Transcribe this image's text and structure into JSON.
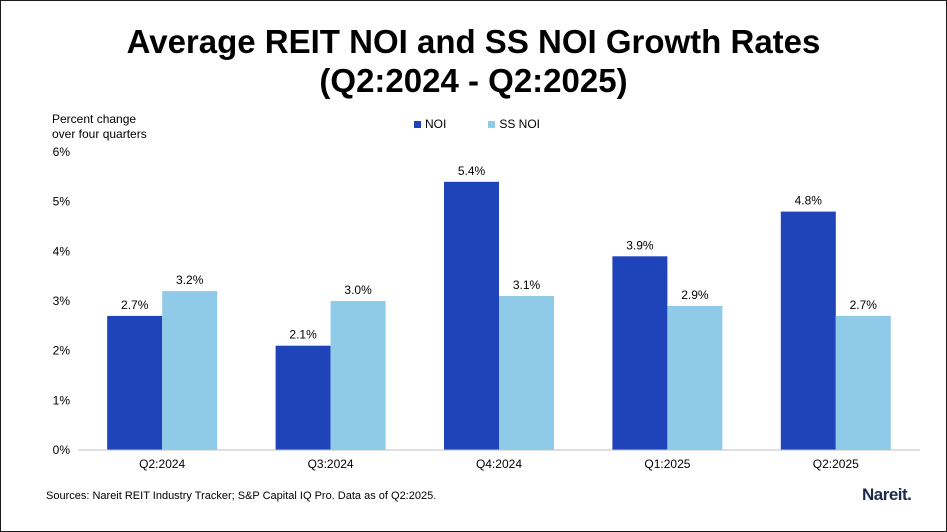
{
  "header": {
    "title_line1": "Average REIT NOI and SS NOI Growth Rates",
    "title_line2": "(Q2:2024 - Q2:2025)"
  },
  "colors": {
    "noi": "#1f43b8",
    "ss_noi": "#8fcbe8"
  },
  "chart_data": {
    "type": "bar",
    "title": "Average REIT NOI and SS NOI Growth Rates (Q2:2024 - Q2:2025)",
    "ylabel_line1": "Percent change",
    "ylabel_line2": "over four quarters",
    "xlabel": "",
    "categories": [
      "Q2:2024",
      "Q3:2024",
      "Q4:2024",
      "Q1:2025",
      "Q2:2025"
    ],
    "series": [
      {
        "name": "NOI",
        "values": [
          2.7,
          2.1,
          5.4,
          3.9,
          4.8
        ],
        "labels": [
          "2.7%",
          "2.1%",
          "5.4%",
          "3.9%",
          "4.8%"
        ]
      },
      {
        "name": "SS NOI",
        "values": [
          3.2,
          3.0,
          3.1,
          2.9,
          2.7
        ],
        "labels": [
          "3.2%",
          "3.0%",
          "3.1%",
          "2.9%",
          "2.7%"
        ]
      }
    ],
    "ylim": [
      0,
      6
    ],
    "yticks": [
      "0%",
      "1%",
      "2%",
      "3%",
      "4%",
      "5%",
      "6%"
    ],
    "grid": false,
    "legend_position": "top-center"
  },
  "footer": {
    "source": "Sources: Nareit REIT Industry Tracker; S&P Capital IQ Pro. Data as of Q2:2025.",
    "logo": "Nareit."
  }
}
